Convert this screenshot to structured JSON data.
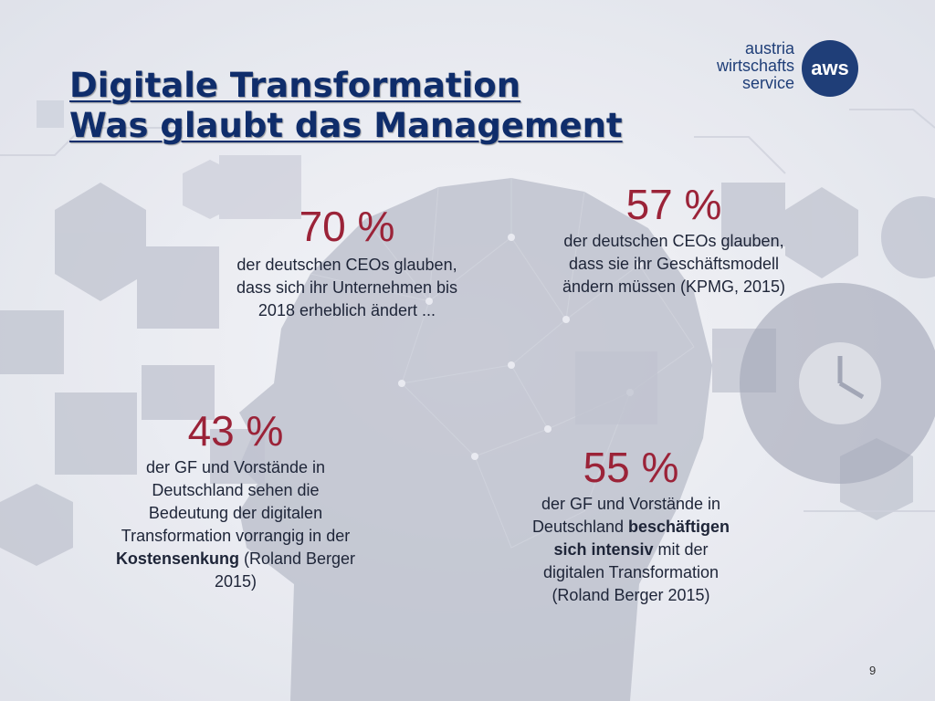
{
  "title": {
    "line1": "Digitale Transformation",
    "line2": "Was glaubt das Management"
  },
  "logo": {
    "line1": "austria",
    "line2": "wirtschafts",
    "line3": "service",
    "mark": "aws"
  },
  "stats": {
    "s70": {
      "percent": "70 %",
      "line1": "der deutschen CEOs glauben,",
      "line2": "dass sich ihr Unternehmen bis",
      "line3": "2018 erheblich ändert ..."
    },
    "s57": {
      "percent": "57 %",
      "line1": "der deutschen CEOs glauben,",
      "line2": "dass sie ihr Geschäftsmodell",
      "line3": "ändern müssen (KPMG, 2015)"
    },
    "s43": {
      "percent": "43 %",
      "line1": "der GF und Vorstände in",
      "line2": "Deutschland sehen die",
      "line3": "Bedeutung der digitalen",
      "line4": "Transformation vorrangig in der",
      "line5_bold": "Kostensenkung",
      "line5_rest": " (Roland Berger",
      "line6": "2015)"
    },
    "s55": {
      "percent": "55 %",
      "line1": "der GF und Vorstände in",
      "line2_plain": "Deutschland ",
      "line2_bold": "beschäftigen",
      "line3_bold": "sich intensiv",
      "line3_rest": " mit der",
      "line4": "digitalen Transformation",
      "line5": "(Roland Berger 2015)"
    }
  },
  "page_number": "9",
  "colors": {
    "title": "#0f2d6b",
    "percent": "#9b2338",
    "brand": "#1f3e78",
    "background": "#eef0f5"
  }
}
